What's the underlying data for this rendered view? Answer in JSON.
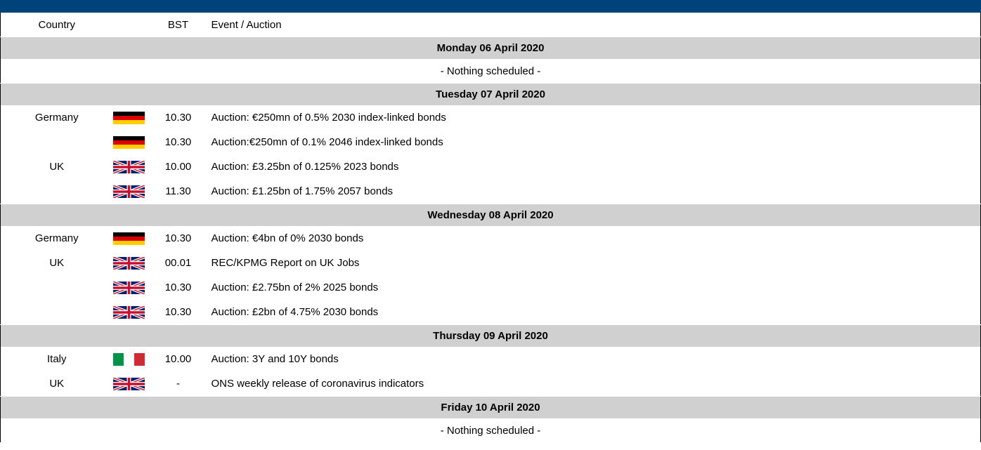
{
  "header": {
    "columns": [
      "Country",
      "BST",
      "Event / Auction"
    ]
  },
  "days": [
    {
      "date": "Monday 06 April 2020",
      "note": "- Nothing scheduled -"
    },
    {
      "date": "Tuesday 07 April 2020",
      "rows": [
        {
          "country": "Germany",
          "time": "10.30",
          "event": "Auction: €250mn of 0.5% 2030 index-linked bonds"
        },
        {
          "time": "10.30",
          "event": "Auction:€250mn of 0.1% 2046 index-linked bonds"
        },
        {
          "country": "UK",
          "time": "10.00",
          "event": "Auction: £3.25bn of 0.125% 2023 bonds"
        },
        {
          "time": "11.30",
          "event": "Auction: £1.25bn of 1.75% 2057 bonds"
        }
      ]
    },
    {
      "date": "Wednesday 08 April 2020",
      "rows": [
        {
          "country": "Germany",
          "time": "10.30",
          "event": "Auction: €4bn of 0% 2030 bonds"
        },
        {
          "country": "UK",
          "time": "00.01",
          "event": "REC/KPMG Report on UK Jobs"
        },
        {
          "time": "10.30",
          "event": "Auction: £2.75bn of 2% 2025 bonds"
        },
        {
          "time": "10.30",
          "event": "Auction: £2bn of 4.75% 2030 bonds"
        }
      ]
    },
    {
      "date": "Thursday 09 April 2020",
      "rows": [
        {
          "country": "Italy",
          "time": "10.00",
          "event": "Auction: 3Y and 10Y bonds"
        },
        {
          "country": "UK",
          "time": "-",
          "event": "ONS weekly release of coronavirus indicators"
        }
      ]
    },
    {
      "date": "Friday 10 April 2020",
      "note": "- Nothing scheduled -"
    }
  ]
}
